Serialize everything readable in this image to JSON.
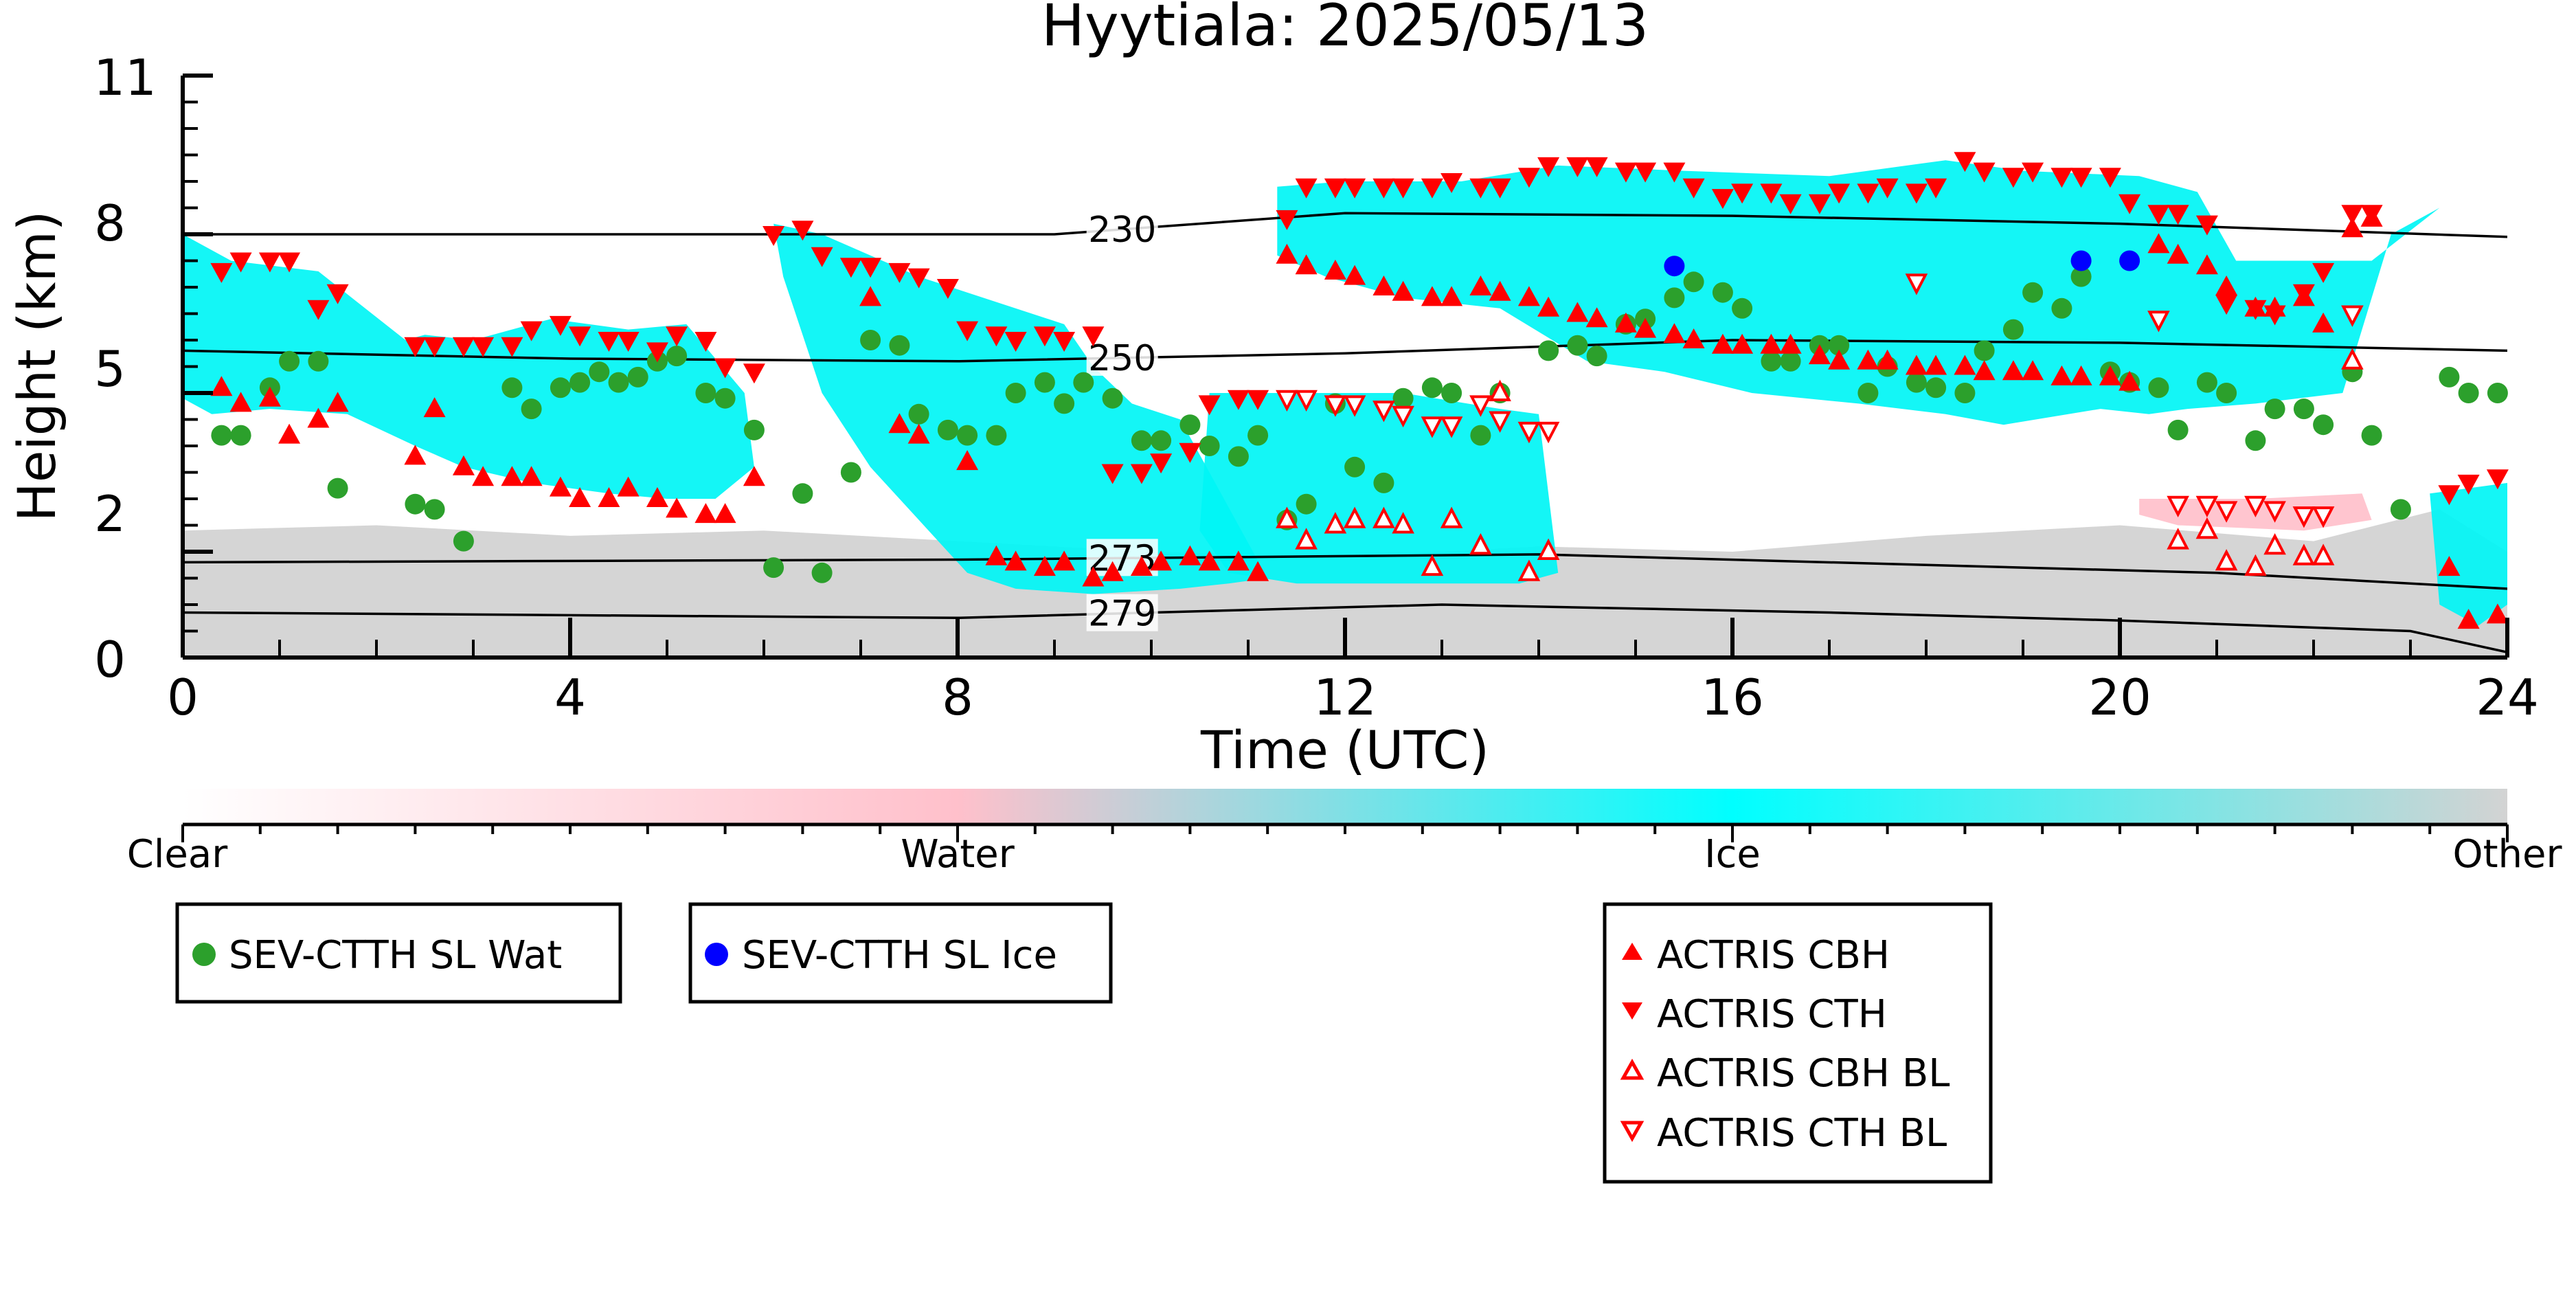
{
  "chart_data": {
    "type": "scatter",
    "title": "Hyytiala: 2025/05/13",
    "xlabel": "Time (UTC)",
    "ylabel": "Height (km)",
    "xlim": [
      0,
      24
    ],
    "ylim": [
      0,
      11
    ],
    "x_ticks": [
      "0",
      "4",
      "8",
      "12",
      "16",
      "20",
      "24"
    ],
    "y_ticks": [
      "0",
      "2",
      "5",
      "8",
      "11"
    ],
    "colors": {
      "ice": "#00f5f5",
      "water": "#ffc0cb",
      "other": "#d3d3d3",
      "sev_wat": "#2ca02c",
      "sev_ice": "#0000ff",
      "actris": "#ff0000"
    },
    "colorbar": {
      "labels": [
        "Clear",
        "Water",
        "Ice",
        "Other"
      ],
      "colors": [
        "#ffffff",
        "#ffc0cb",
        "#00ffff",
        "#d3d3d3"
      ]
    },
    "isotherms": [
      {
        "label": "230",
        "x": [
          0,
          9,
          12,
          16,
          20,
          24
        ],
        "y": [
          8.0,
          8.0,
          8.4,
          8.35,
          8.2,
          7.95
        ]
      },
      {
        "label": "250",
        "x": [
          0,
          4,
          8,
          12,
          16,
          20,
          24
        ],
        "y": [
          5.8,
          5.65,
          5.6,
          5.75,
          6.0,
          5.95,
          5.8
        ]
      },
      {
        "label": "273",
        "x": [
          0,
          8,
          11,
          14,
          18,
          21,
          24
        ],
        "y": [
          1.8,
          1.85,
          1.9,
          1.95,
          1.75,
          1.6,
          1.3
        ]
      },
      {
        "label": "279",
        "x": [
          0,
          8,
          11,
          13,
          17,
          20,
          23,
          24
        ],
        "y": [
          0.85,
          0.75,
          0.9,
          1.0,
          0.85,
          0.7,
          0.5,
          0.1
        ]
      }
    ],
    "legend": [
      {
        "name": "SEV-CTTH SL Wat",
        "marker": "circle",
        "color": "#2ca02c"
      },
      {
        "name": "SEV-CTTH SL Ice",
        "marker": "circle",
        "color": "#0000ff"
      },
      {
        "name": "ACTRIS CBH",
        "marker": "triangle-up-filled",
        "color": "#ff0000"
      },
      {
        "name": "ACTRIS CTH",
        "marker": "triangle-down-filled",
        "color": "#ff0000"
      },
      {
        "name": "ACTRIS CBH BL",
        "marker": "triangle-up-open",
        "color": "#ff0000"
      },
      {
        "name": "ACTRIS CTH BL",
        "marker": "triangle-down-open",
        "color": "#ff0000"
      }
    ],
    "cloud_regions": [
      {
        "phase": "ice",
        "x": [
          0,
          0.5,
          1.4,
          2.3,
          2.5,
          3.0,
          3.8,
          4.6,
          5.2,
          5.8,
          5.9,
          5.5,
          5.0,
          4.4,
          3.6,
          2.9,
          2.4,
          1.7,
          0.9,
          0.3,
          0
        ],
        "y": [
          8.0,
          7.5,
          7.3,
          6.0,
          6.1,
          6.0,
          6.4,
          6.2,
          6.3,
          5.0,
          3.6,
          3.0,
          3.0,
          3.1,
          3.3,
          3.6,
          4.0,
          4.6,
          4.7,
          4.6,
          4.9
        ]
      },
      {
        "phase": "ice",
        "x": [
          6.1,
          6.6,
          7.6,
          9.1,
          9.4,
          9.8,
          10.3,
          11.2,
          10.8,
          10.3,
          9.4,
          8.6,
          8.1,
          7.6,
          7.1,
          6.6,
          6.2
        ],
        "y": [
          8.2,
          8.0,
          7.2,
          6.3,
          5.5,
          4.8,
          4.5,
          1.5,
          1.4,
          1.3,
          1.2,
          1.3,
          1.6,
          2.6,
          3.6,
          5.0,
          7.2
        ]
      },
      {
        "phase": "ice",
        "x": [
          10.6,
          11.6,
          12.6,
          13.6,
          14.0,
          14.2,
          13.8,
          13.1,
          12.3,
          11.5,
          10.8,
          10.5
        ],
        "y": [
          5.0,
          5.0,
          5.0,
          4.7,
          4.6,
          1.6,
          1.4,
          1.4,
          1.4,
          1.4,
          1.6,
          2.4
        ]
      },
      {
        "phase": "ice",
        "x": [
          11.3,
          12.0,
          13.2,
          14.2,
          15.5,
          17.0,
          18.2,
          19.0,
          20.2,
          20.8,
          21.2,
          22.6,
          23.3,
          22.8,
          22.3,
          21.4,
          20.7,
          20.3,
          19.8,
          18.8,
          18.2,
          17.3,
          16.2,
          15.3,
          14.5,
          13.6,
          12.6,
          11.8,
          11.3
        ],
        "y": [
          8.9,
          9.0,
          9.0,
          9.3,
          9.2,
          9.1,
          9.4,
          9.2,
          9.1,
          8.8,
          7.5,
          7.5,
          8.5,
          8.0,
          5.0,
          4.8,
          4.7,
          4.6,
          4.7,
          4.4,
          4.6,
          4.8,
          5.0,
          5.4,
          5.6,
          6.6,
          6.8,
          7.2,
          7.6
        ]
      },
      {
        "phase": "ice",
        "x": [
          23.2,
          24,
          24,
          23.7,
          23.3
        ],
        "y": [
          3.1,
          3.3,
          1.0,
          0.6,
          1.0
        ]
      },
      {
        "phase": "water",
        "x": [
          20.2,
          21.4,
          22.5,
          22.6,
          21.9,
          20.6,
          20.2
        ],
        "y": [
          3.0,
          3.0,
          3.1,
          2.6,
          2.4,
          2.5,
          2.7
        ]
      },
      {
        "phase": "other",
        "x": [
          0,
          2,
          4,
          6,
          8,
          10,
          12,
          14,
          16,
          18,
          20,
          22,
          23.3,
          24,
          24,
          0
        ],
        "y": [
          2.4,
          2.5,
          2.3,
          2.4,
          2.2,
          2.0,
          1.9,
          2.1,
          2.0,
          2.3,
          2.5,
          2.2,
          2.8,
          2.0,
          0,
          0
        ]
      }
    ],
    "series": [
      {
        "name": "SEV-CTTH SL Wat",
        "marker": "circle",
        "x": [
          0.4,
          0.6,
          0.9,
          1.1,
          1.4,
          1.6,
          2.4,
          2.6,
          2.9,
          3.4,
          3.6,
          3.9,
          4.1,
          4.3,
          4.5,
          4.7,
          4.9,
          5.1,
          5.4,
          5.6,
          5.9,
          6.1,
          6.4,
          6.6,
          6.9,
          7.1,
          7.4,
          7.6,
          7.9,
          8.1,
          8.4,
          8.6,
          8.9,
          9.1,
          9.3,
          9.6,
          9.9,
          10.1,
          10.4,
          10.6,
          10.9,
          11.1,
          11.4,
          11.6,
          11.9,
          12.1,
          12.4,
          12.6,
          12.9,
          13.1,
          13.4,
          13.6,
          14.1,
          14.4,
          14.6,
          14.9,
          15.1,
          15.4,
          15.6,
          15.9,
          16.1,
          16.4,
          16.6,
          16.9,
          17.1,
          17.4,
          17.6,
          17.9,
          18.1,
          18.4,
          18.6,
          18.9,
          19.1,
          19.4,
          19.6,
          19.9,
          20.1,
          20.4,
          20.6,
          20.9,
          21.1,
          21.4,
          21.6,
          21.9,
          22.1,
          22.4,
          22.6,
          22.9,
          23.4,
          23.6,
          23.9
        ],
        "y": [
          4.2,
          4.2,
          5.1,
          5.6,
          5.6,
          3.2,
          2.9,
          2.8,
          2.2,
          5.1,
          4.7,
          5.1,
          5.2,
          5.4,
          5.2,
          5.3,
          5.6,
          5.7,
          5.0,
          4.9,
          4.3,
          1.7,
          3.1,
          1.6,
          3.5,
          6.0,
          5.9,
          4.6,
          4.3,
          4.2,
          4.2,
          5.0,
          5.2,
          4.8,
          5.2,
          4.9,
          4.1,
          4.1,
          4.4,
          4.0,
          3.8,
          4.2,
          2.6,
          2.9,
          4.8,
          3.6,
          3.3,
          4.9,
          5.1,
          5.0,
          4.2,
          5.0,
          5.8,
          5.9,
          5.7,
          6.3,
          6.4,
          6.8,
          7.1,
          6.9,
          6.6,
          5.6,
          5.6,
          5.9,
          5.9,
          5.0,
          5.5,
          5.2,
          5.1,
          5.0,
          5.8,
          6.2,
          6.9,
          6.6,
          7.2,
          5.4,
          5.2,
          5.1,
          4.3,
          5.2,
          5.0,
          4.1,
          4.7,
          4.7,
          4.4,
          5.4,
          4.2,
          2.8,
          5.3,
          5.0,
          5.0
        ]
      },
      {
        "name": "SEV-CTTH SL Ice",
        "marker": "circle",
        "x": [
          15.4,
          19.6,
          20.1
        ],
        "y": [
          7.4,
          7.5,
          7.5
        ]
      },
      {
        "name": "ACTRIS CBH",
        "marker": "triangle-up-filled",
        "x": [
          0.4,
          0.6,
          0.9,
          1.1,
          1.4,
          1.6,
          2.4,
          2.6,
          2.9,
          3.1,
          3.4,
          3.6,
          3.9,
          4.1,
          4.4,
          4.6,
          4.9,
          5.1,
          5.4,
          5.6,
          5.9,
          7.1,
          7.4,
          7.6,
          8.1,
          8.4,
          8.6,
          8.9,
          9.1,
          9.4,
          9.6,
          9.9,
          10.1,
          10.4,
          10.6,
          10.9,
          11.1,
          11.4,
          11.6,
          11.9,
          12.1,
          12.4,
          12.6,
          12.9,
          13.1,
          13.4,
          13.6,
          13.9,
          14.1,
          14.4,
          14.6,
          14.9,
          15.1,
          15.4,
          15.6,
          15.9,
          16.1,
          16.4,
          16.6,
          16.9,
          17.1,
          17.4,
          17.6,
          17.9,
          18.1,
          18.4,
          18.6,
          18.9,
          19.1,
          19.4,
          19.6,
          19.9,
          20.1,
          20.4,
          20.6,
          20.9,
          21.1,
          21.4,
          21.6,
          21.9,
          22.1,
          22.4,
          22.6,
          23.4,
          23.6,
          23.9
        ],
        "y": [
          5.1,
          4.8,
          4.9,
          4.2,
          4.5,
          4.8,
          3.8,
          4.7,
          3.6,
          3.4,
          3.4,
          3.4,
          3.2,
          3.0,
          3.0,
          3.2,
          3.0,
          2.8,
          2.7,
          2.7,
          3.4,
          6.8,
          4.4,
          4.2,
          3.7,
          1.9,
          1.8,
          1.7,
          1.8,
          1.5,
          1.6,
          1.7,
          1.8,
          1.9,
          1.8,
          1.8,
          1.6,
          7.6,
          7.4,
          7.3,
          7.2,
          7.0,
          6.9,
          6.8,
          6.8,
          7.0,
          6.9,
          6.8,
          6.6,
          6.5,
          6.4,
          6.3,
          6.2,
          6.1,
          6.0,
          5.9,
          5.9,
          5.9,
          5.9,
          5.7,
          5.6,
          5.6,
          5.6,
          5.5,
          5.5,
          5.5,
          5.4,
          5.4,
          5.4,
          5.3,
          5.3,
          5.3,
          5.2,
          7.8,
          7.6,
          7.4,
          7.0,
          6.6,
          6.6,
          6.8,
          6.3,
          8.1,
          8.3,
          1.7,
          0.7,
          0.8
        ]
      },
      {
        "name": "ACTRIS CTH",
        "marker": "triangle-down-filled",
        "x": [
          0.4,
          0.6,
          0.9,
          1.1,
          1.4,
          1.6,
          2.4,
          2.6,
          2.9,
          3.1,
          3.4,
          3.6,
          3.9,
          4.1,
          4.4,
          4.6,
          4.9,
          5.1,
          5.4,
          5.6,
          5.9,
          6.1,
          6.4,
          6.6,
          6.9,
          7.1,
          7.4,
          7.6,
          7.9,
          8.1,
          8.4,
          8.6,
          8.9,
          9.1,
          9.4,
          9.6,
          9.9,
          10.1,
          10.4,
          10.6,
          10.9,
          11.1,
          11.4,
          11.6,
          11.9,
          12.1,
          12.4,
          12.6,
          12.9,
          13.1,
          13.4,
          13.6,
          13.9,
          14.1,
          14.4,
          14.6,
          14.9,
          15.1,
          15.4,
          15.6,
          15.9,
          16.1,
          16.4,
          16.6,
          16.9,
          17.1,
          17.4,
          17.6,
          17.9,
          18.1,
          18.4,
          18.6,
          18.9,
          19.1,
          19.4,
          19.6,
          19.9,
          20.1,
          20.4,
          20.6,
          20.9,
          21.1,
          21.4,
          21.6,
          21.9,
          22.1,
          22.4,
          22.6,
          23.4,
          23.6,
          23.9
        ],
        "y": [
          7.3,
          7.5,
          7.5,
          7.5,
          6.6,
          6.9,
          5.9,
          5.9,
          5.9,
          5.9,
          5.9,
          6.2,
          6.3,
          6.1,
          6.0,
          6.0,
          5.8,
          6.1,
          6.0,
          5.5,
          5.4,
          8.0,
          8.1,
          7.6,
          7.4,
          7.4,
          7.3,
          7.2,
          7.0,
          6.2,
          6.1,
          6.0,
          6.1,
          6.0,
          6.1,
          3.5,
          3.5,
          3.7,
          3.9,
          4.8,
          4.9,
          4.9,
          8.3,
          8.9,
          8.9,
          8.9,
          8.9,
          8.9,
          8.9,
          9.0,
          8.9,
          8.9,
          9.1,
          9.3,
          9.3,
          9.3,
          9.2,
          9.2,
          9.2,
          8.9,
          8.7,
          8.8,
          8.8,
          8.6,
          8.6,
          8.8,
          8.8,
          8.9,
          8.8,
          8.9,
          9.4,
          9.2,
          9.1,
          9.2,
          9.1,
          9.1,
          9.1,
          8.6,
          8.4,
          8.4,
          8.2,
          6.7,
          6.6,
          6.5,
          6.9,
          7.3,
          8.4,
          8.4,
          3.1,
          3.3,
          3.4
        ]
      },
      {
        "name": "ACTRIS CBH BL",
        "marker": "triangle-up-open",
        "x": [
          11.4,
          11.6,
          11.9,
          12.1,
          12.4,
          12.6,
          12.9,
          13.1,
          13.4,
          13.6,
          13.9,
          14.1,
          20.6,
          20.9,
          21.1,
          21.4,
          21.6,
          21.9,
          22.1,
          22.4
        ],
        "y": [
          2.6,
          2.2,
          2.5,
          2.6,
          2.6,
          2.5,
          1.7,
          2.6,
          2.1,
          5.0,
          1.6,
          2.0,
          2.2,
          2.4,
          1.8,
          1.7,
          2.1,
          1.9,
          1.9,
          5.6
        ]
      },
      {
        "name": "ACTRIS CTH BL",
        "marker": "triangle-down-open",
        "x": [
          11.4,
          11.6,
          11.9,
          12.1,
          12.4,
          12.6,
          12.9,
          13.1,
          13.4,
          13.6,
          13.9,
          14.1,
          17.9,
          20.4,
          20.6,
          20.9,
          21.1,
          21.4,
          21.6,
          21.9,
          22.1,
          22.4
        ],
        "y": [
          4.9,
          4.9,
          4.8,
          4.8,
          4.7,
          4.6,
          4.4,
          4.4,
          4.8,
          4.5,
          4.3,
          4.3,
          7.1,
          6.4,
          2.9,
          2.9,
          2.8,
          2.9,
          2.8,
          2.7,
          2.7,
          6.5
        ]
      }
    ]
  }
}
